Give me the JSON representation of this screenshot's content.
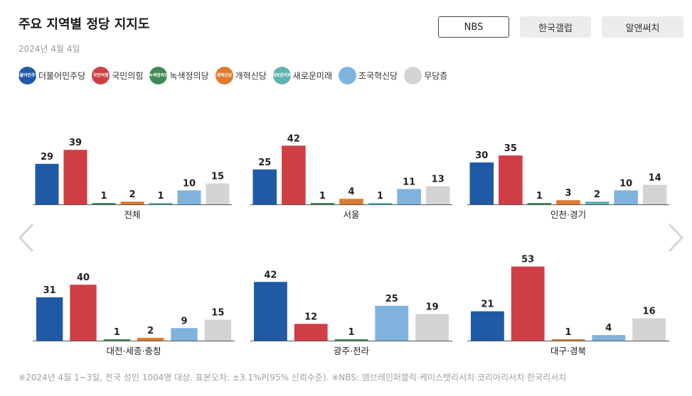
{
  "header": {
    "title": "주요 지역별 정당 지지도",
    "date": "2024년 4월 4일"
  },
  "tabs": [
    {
      "label": "NBS",
      "active": true
    },
    {
      "label": "한국갤럽",
      "active": false
    },
    {
      "label": "알앤써치",
      "active": false
    }
  ],
  "legend": [
    {
      "name": "더불어민주당",
      "color": "#1f5aa6",
      "logo_text": "더불어민주당",
      "icon": "democratic-party-logo-icon"
    },
    {
      "name": "국민의힘",
      "color": "#cf3e45",
      "logo_text": "국민의힘",
      "icon": "people-power-party-logo-icon"
    },
    {
      "name": "녹색정의당",
      "color": "#3e8a55",
      "logo_text": "녹색정의당",
      "icon": "green-justice-party-logo-icon"
    },
    {
      "name": "개혁신당",
      "color": "#e07a2c",
      "logo_text": "개혁신당",
      "icon": "reform-party-logo-icon"
    },
    {
      "name": "새로운미래",
      "color": "#5fb3b0",
      "logo_text": "새로운미래",
      "icon": "new-future-party-logo-icon"
    },
    {
      "name": "조국혁신당",
      "color": "#7fb3dd",
      "logo_text": "",
      "icon": "rebuilding-korea-party-logo-icon"
    },
    {
      "name": "무당층",
      "color": "#d4d4d4",
      "logo_text": "",
      "icon": "independent-circle-icon"
    }
  ],
  "chart_data": [
    {
      "type": "bar",
      "title": "",
      "xlabel": "전체",
      "ylabel": "",
      "categories": [
        "더불어민주당",
        "국민의힘",
        "녹색정의당",
        "개혁신당",
        "새로운미래",
        "조국혁신당",
        "무당층"
      ],
      "values": [
        29,
        39,
        1,
        2,
        1,
        10,
        15
      ]
    },
    {
      "type": "bar",
      "title": "",
      "xlabel": "서울",
      "ylabel": "",
      "categories": [
        "더불어민주당",
        "국민의힘",
        "녹색정의당",
        "개혁신당",
        "새로운미래",
        "조국혁신당",
        "무당층"
      ],
      "values": [
        25,
        42,
        1,
        4,
        1,
        11,
        13
      ]
    },
    {
      "type": "bar",
      "title": "",
      "xlabel": "인천·경기",
      "ylabel": "",
      "categories": [
        "더불어민주당",
        "국민의힘",
        "녹색정의당",
        "개혁신당",
        "새로운미래",
        "조국혁신당",
        "무당층"
      ],
      "values": [
        30,
        35,
        1,
        3,
        2,
        10,
        14
      ]
    },
    {
      "type": "bar",
      "title": "",
      "xlabel": "대전·세종·충청",
      "ylabel": "",
      "categories": [
        "더불어민주당",
        "국민의힘",
        "녹색정의당",
        "개혁신당",
        "조국혁신당",
        "무당층"
      ],
      "values": [
        31,
        40,
        1,
        2,
        9,
        15
      ]
    },
    {
      "type": "bar",
      "title": "",
      "xlabel": "광주·전라",
      "ylabel": "",
      "categories": [
        "더불어민주당",
        "국민의힘",
        "녹색정의당",
        "조국혁신당",
        "무당층"
      ],
      "values": [
        42,
        12,
        1,
        25,
        19
      ]
    },
    {
      "type": "bar",
      "title": "",
      "xlabel": "대구·경북",
      "ylabel": "",
      "categories": [
        "더불어민주당",
        "국민의힘",
        "개혁신당",
        "조국혁신당",
        "무당층"
      ],
      "values": [
        21,
        53,
        1,
        4,
        16
      ]
    }
  ],
  "footnote": "※2024년 4월 1~3일, 전국 성인 1004명 대상. 표본오차: ±3.1%P(95% 신뢰수준). ※NBS: 엠브레인퍼블릭·케이스탯리서치·코리아리서치·한국리서치"
}
